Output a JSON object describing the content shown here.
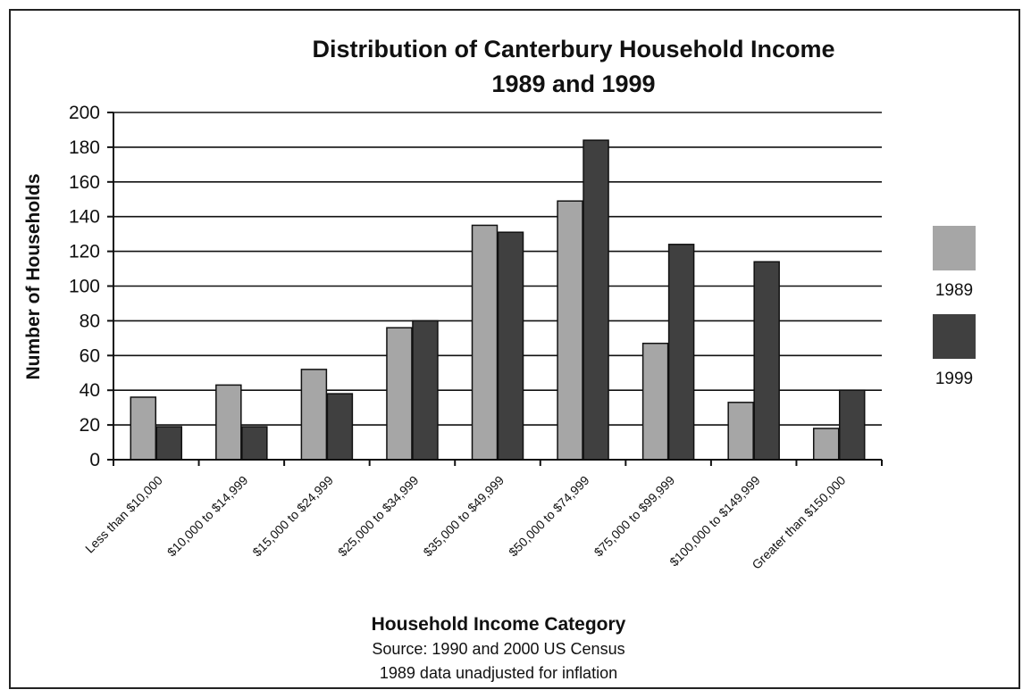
{
  "chart_data": {
    "type": "bar",
    "title_lines": [
      "Distribution of Canterbury Household Income",
      "1989 and 1999"
    ],
    "xlabel": "Household Income Category",
    "ylabel": "Number of Households",
    "notes": [
      "Source: 1990 and 2000 US Census",
      "1989 data unadjusted for inflation"
    ],
    "ylim": [
      0,
      200
    ],
    "yticks": [
      "0",
      "20",
      "40",
      "60",
      "80",
      "100",
      "120",
      "140",
      "160",
      "180",
      "200"
    ],
    "grid": true,
    "legend_position": "right",
    "categories": [
      "Less than $10,000",
      "$10,000 to $14,999",
      "$15,000 to $24,999",
      "$25,000 to $34,999",
      "$35,000 to $49,999",
      "$50,000 to $74,999",
      "$75,000 to $99,999",
      "$100,000 to $149,999",
      "Greater than $150,000"
    ],
    "series": [
      {
        "name": "1989",
        "color": "#a6a6a6",
        "values": [
          36,
          43,
          52,
          76,
          135,
          149,
          67,
          33,
          18
        ]
      },
      {
        "name": "1999",
        "color": "#404040",
        "values": [
          19,
          19,
          38,
          80,
          131,
          184,
          124,
          114,
          40
        ]
      }
    ]
  }
}
